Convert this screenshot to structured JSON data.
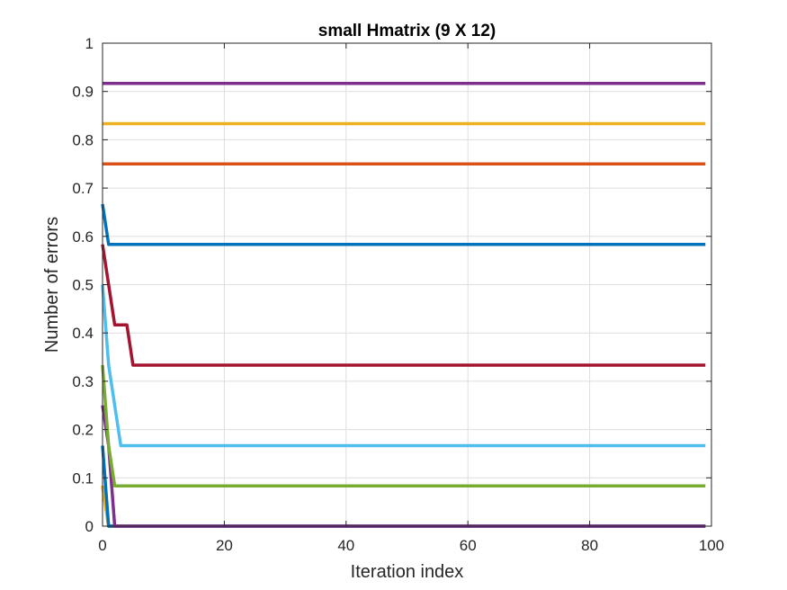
{
  "chart_data": {
    "type": "line",
    "title": "small Hmatrix (9 X 12)",
    "xlabel": "Iteration index",
    "ylabel": "Number of errors",
    "xlim": [
      0,
      100
    ],
    "ylim": [
      0,
      1
    ],
    "xticks": [
      0,
      20,
      40,
      60,
      80,
      100
    ],
    "yticks": [
      0,
      0.1,
      0.2,
      0.3,
      0.4,
      0.5,
      0.6,
      0.7,
      0.8,
      0.9,
      1
    ],
    "xtick_labels": [
      "0",
      "20",
      "40",
      "60",
      "80",
      "100"
    ],
    "ytick_labels": [
      "0",
      "0.1",
      "0.2",
      "0.3",
      "0.4",
      "0.5",
      "0.6",
      "0.7",
      "0.8",
      "0.9",
      "1"
    ],
    "grid": true,
    "legend": "none",
    "series": [
      {
        "color": "#7E2F8E",
        "x": [
          0,
          99
        ],
        "y": [
          0.9167,
          0.9167
        ]
      },
      {
        "color": "#EDB120",
        "x": [
          0,
          99
        ],
        "y": [
          0.8333,
          0.8333
        ]
      },
      {
        "color": "#D95319",
        "x": [
          0,
          99
        ],
        "y": [
          0.75,
          0.75
        ]
      },
      {
        "color": "#0072BD",
        "x": [
          0,
          1,
          99
        ],
        "y": [
          0.6667,
          0.5833,
          0.5833
        ]
      },
      {
        "color": "#A2142F",
        "x": [
          0,
          1,
          2,
          3,
          4,
          5,
          99
        ],
        "y": [
          0.5833,
          0.5,
          0.4167,
          0.4167,
          0.4167,
          0.3333,
          0.3333
        ]
      },
      {
        "color": "#4DBEEE",
        "x": [
          0,
          1,
          2,
          3,
          99
        ],
        "y": [
          0.5,
          0.3333,
          0.25,
          0.1667,
          0.1667
        ]
      },
      {
        "color": "#77AC30",
        "x": [
          0,
          1,
          2,
          99
        ],
        "y": [
          0.3333,
          0.1667,
          0.0833,
          0.0833
        ]
      },
      {
        "color": "#7E2F8E",
        "x": [
          0,
          1,
          2,
          99
        ],
        "y": [
          0.25,
          0.1667,
          0,
          0
        ]
      },
      {
        "color": "#0072BD",
        "x": [
          0,
          1,
          99
        ],
        "y": [
          0.1667,
          0,
          0
        ]
      },
      {
        "color": "#EDB120",
        "x": [
          0,
          1,
          99
        ],
        "y": [
          0.0833,
          0,
          0
        ]
      },
      {
        "color": "#D95319",
        "x": [
          0,
          1,
          99
        ],
        "y": [
          0.0833,
          0,
          0
        ]
      }
    ]
  }
}
